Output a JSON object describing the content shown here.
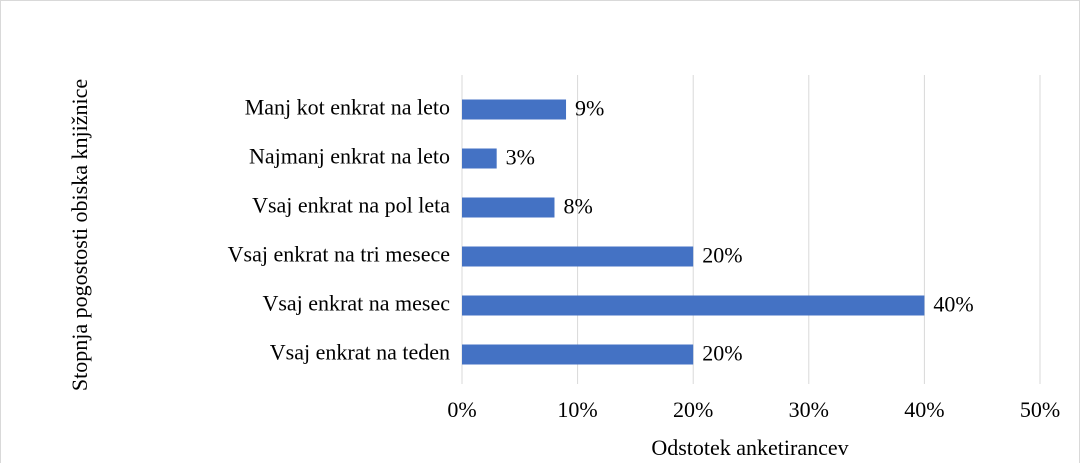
{
  "chart_data": {
    "type": "bar",
    "orientation": "horizontal",
    "categories": [
      "Manj kot enkrat na leto",
      "Najmanj enkrat na leto",
      "Vsaj enkrat na pol leta",
      "Vsaj enkrat na tri mesece",
      "Vsaj enkrat na mesec",
      "Vsaj enkrat na teden"
    ],
    "values": [
      9,
      3,
      8,
      20,
      40,
      20
    ],
    "value_labels": [
      "9%",
      "3%",
      "8%",
      "20%",
      "40%",
      "20%"
    ],
    "color": "#4472c4",
    "xlabel": "Odstotek anketirancev",
    "ylabel": "Stopnja pogostosti obiska knjižnice",
    "xlim": [
      0,
      50
    ],
    "xticks": [
      {
        "value": 0,
        "label": "0%"
      },
      {
        "value": 10,
        "label": "10%"
      },
      {
        "value": 20,
        "label": "20%"
      },
      {
        "value": 30,
        "label": "30%"
      },
      {
        "value": 40,
        "label": "40%"
      },
      {
        "value": 50,
        "label": "50%"
      }
    ],
    "grid": true
  }
}
